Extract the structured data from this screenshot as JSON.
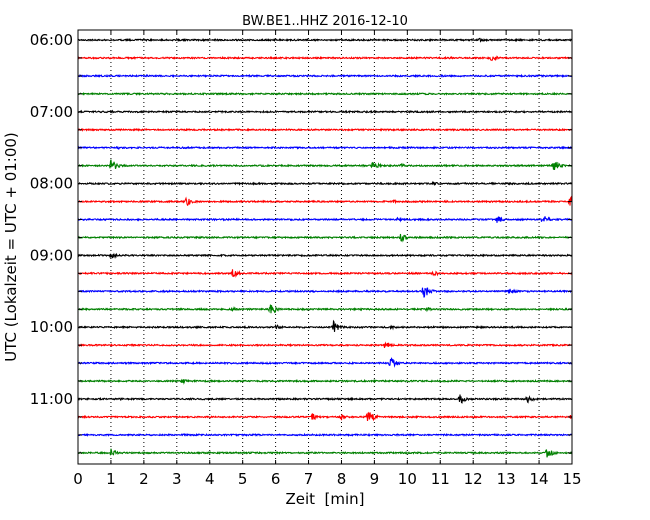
{
  "chart_data": {
    "type": "line",
    "subtype": "dayplot",
    "title": "BW.BE1..HHZ 2016-12-10",
    "xlabel": "Zeit  [min]",
    "ylabel": "UTC (Lokalzeit = UTC + 01:00)",
    "xlim": [
      0,
      15
    ],
    "x_ticks": [
      "0",
      "1",
      "2",
      "3",
      "4",
      "5",
      "6",
      "7",
      "8",
      "9",
      "10",
      "11",
      "12",
      "13",
      "14",
      "15"
    ],
    "y_tick_labels": [
      "06:00",
      "07:00",
      "08:00",
      "09:00",
      "10:00",
      "11:00"
    ],
    "grid": "vertical-dotted",
    "colors": [
      "#000000",
      "#ff0000",
      "#0000ff",
      "#008000"
    ],
    "rows": [
      {
        "start": "06:00",
        "events": [
          {
            "t": 12.2,
            "amp": 0.25
          }
        ]
      },
      {
        "start": "06:15",
        "events": [
          {
            "t": 12.55,
            "amp": 0.6
          },
          {
            "t": 11.3,
            "amp": 0.15
          }
        ]
      },
      {
        "start": "06:30",
        "events": []
      },
      {
        "start": "06:45",
        "events": []
      },
      {
        "start": "07:00",
        "events": [
          {
            "t": 1.0,
            "amp": 0.2
          }
        ]
      },
      {
        "start": "07:15",
        "events": []
      },
      {
        "start": "07:30",
        "events": [
          {
            "t": 1.2,
            "amp": 0.2
          }
        ]
      },
      {
        "start": "07:45",
        "events": [
          {
            "t": 1.0,
            "amp": 0.9
          },
          {
            "t": 8.95,
            "amp": 0.6
          },
          {
            "t": 9.8,
            "amp": 0.25
          },
          {
            "t": 14.45,
            "amp": 0.8
          }
        ]
      },
      {
        "start": "08:00",
        "events": [
          {
            "t": 10.8,
            "amp": 0.25
          }
        ]
      },
      {
        "start": "08:15",
        "events": [
          {
            "t": 3.3,
            "amp": 0.6
          },
          {
            "t": 14.95,
            "amp": 0.7
          },
          {
            "t": 9.6,
            "amp": 0.2
          }
        ]
      },
      {
        "start": "08:30",
        "events": [
          {
            "t": 12.7,
            "amp": 0.55
          },
          {
            "t": 14.1,
            "amp": 0.65
          },
          {
            "t": 9.7,
            "amp": 0.25
          }
        ]
      },
      {
        "start": "08:45",
        "events": [
          {
            "t": 9.8,
            "amp": 0.7
          },
          {
            "t": 2.5,
            "amp": 0.2
          }
        ]
      },
      {
        "start": "09:00",
        "events": [
          {
            "t": 1.0,
            "amp": 0.45
          }
        ]
      },
      {
        "start": "09:15",
        "events": [
          {
            "t": 4.7,
            "amp": 0.65
          },
          {
            "t": 10.8,
            "amp": 0.35
          }
        ]
      },
      {
        "start": "09:30",
        "events": [
          {
            "t": 10.5,
            "amp": 0.9
          },
          {
            "t": 13.1,
            "amp": 0.35
          }
        ]
      },
      {
        "start": "09:45",
        "events": [
          {
            "t": 5.85,
            "amp": 0.9
          },
          {
            "t": 4.7,
            "amp": 0.3
          },
          {
            "t": 10.6,
            "amp": 0.25
          }
        ]
      },
      {
        "start": "10:00",
        "events": [
          {
            "t": 7.75,
            "amp": 0.8
          },
          {
            "t": 6.0,
            "amp": 0.35
          },
          {
            "t": 9.5,
            "amp": 0.25
          }
        ]
      },
      {
        "start": "10:15",
        "events": [
          {
            "t": 9.3,
            "amp": 0.55
          }
        ]
      },
      {
        "start": "10:30",
        "events": [
          {
            "t": 9.5,
            "amp": 0.8
          }
        ]
      },
      {
        "start": "10:45",
        "events": [
          {
            "t": 3.15,
            "amp": 0.35
          }
        ]
      },
      {
        "start": "11:00",
        "events": [
          {
            "t": 11.6,
            "amp": 0.7
          },
          {
            "t": 13.65,
            "amp": 0.5
          },
          {
            "t": 1.3,
            "amp": 0.15
          }
        ]
      },
      {
        "start": "11:15",
        "events": [
          {
            "t": 8.8,
            "amp": 1.0
          },
          {
            "t": 7.1,
            "amp": 0.5
          },
          {
            "t": 8.0,
            "amp": 0.45
          },
          {
            "t": 14.95,
            "amp": 0.3
          }
        ]
      },
      {
        "start": "11:30",
        "events": [
          {
            "t": 3.2,
            "amp": 0.15
          }
        ]
      },
      {
        "start": "11:45",
        "events": [
          {
            "t": 1.0,
            "amp": 0.55
          },
          {
            "t": 14.25,
            "amp": 0.7
          }
        ]
      }
    ]
  }
}
